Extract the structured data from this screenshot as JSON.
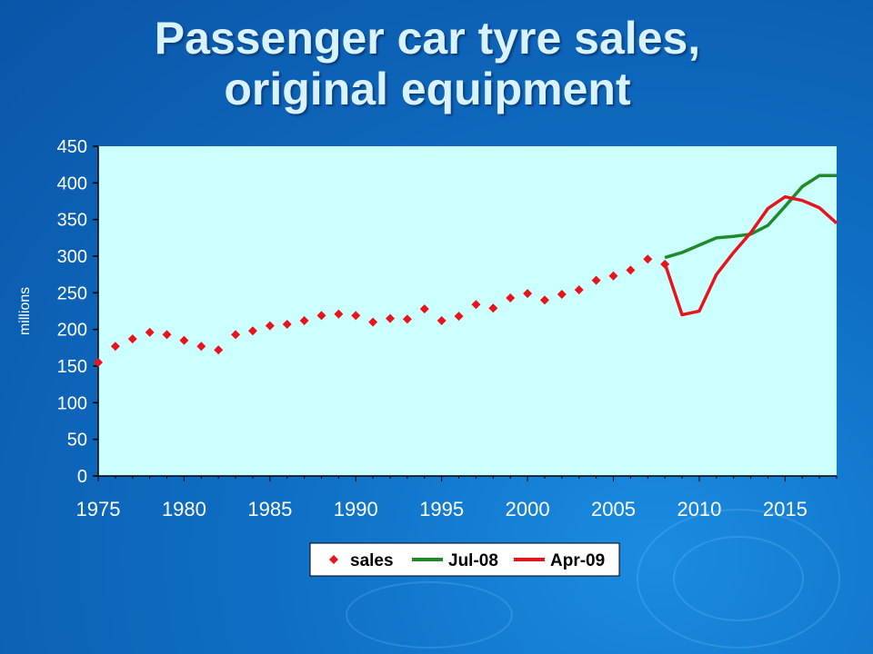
{
  "title": {
    "line1": "Passenger car tyre sales,",
    "line2": "original equipment"
  },
  "chart_data": {
    "type": "line",
    "ylabel": "millions",
    "xlim": [
      1975,
      2018
    ],
    "ylim": [
      0,
      450
    ],
    "x_ticks": [
      1975,
      1980,
      1985,
      1990,
      1995,
      2000,
      2005,
      2010,
      2015
    ],
    "y_ticks": [
      0,
      50,
      100,
      150,
      200,
      250,
      300,
      350,
      400,
      450
    ],
    "grid": false,
    "legend_position": "bottom",
    "colors": {
      "plot_background": "#ccffff",
      "sales": "#e8141c",
      "jul08": "#1e8a28",
      "apr09": "#e8141c"
    },
    "series": [
      {
        "name": "sales",
        "kind": "markers",
        "points": [
          [
            1975,
            155
          ],
          [
            1976,
            177
          ],
          [
            1977,
            187
          ],
          [
            1978,
            196
          ],
          [
            1979,
            193
          ],
          [
            1980,
            185
          ],
          [
            1981,
            177
          ],
          [
            1982,
            172
          ],
          [
            1983,
            193
          ],
          [
            1984,
            198
          ],
          [
            1985,
            205
          ],
          [
            1986,
            207
          ],
          [
            1987,
            212
          ],
          [
            1988,
            219
          ],
          [
            1989,
            221
          ],
          [
            1990,
            219
          ],
          [
            1991,
            210
          ],
          [
            1992,
            215
          ],
          [
            1993,
            214
          ],
          [
            1994,
            228
          ],
          [
            1995,
            212
          ],
          [
            1996,
            218
          ],
          [
            1997,
            234
          ],
          [
            1998,
            229
          ],
          [
            1999,
            243
          ],
          [
            2000,
            249
          ],
          [
            2001,
            240
          ],
          [
            2002,
            248
          ],
          [
            2003,
            254
          ],
          [
            2004,
            267
          ],
          [
            2005,
            273
          ],
          [
            2006,
            281
          ],
          [
            2007,
            296
          ],
          [
            2008,
            289
          ]
        ]
      },
      {
        "name": "Jul-08",
        "kind": "line",
        "points": [
          [
            2008,
            298
          ],
          [
            2009,
            305
          ],
          [
            2010,
            315
          ],
          [
            2011,
            325
          ],
          [
            2012,
            327
          ],
          [
            2013,
            330
          ],
          [
            2014,
            342
          ],
          [
            2015,
            368
          ],
          [
            2016,
            395
          ],
          [
            2017,
            410
          ],
          [
            2018,
            410
          ]
        ]
      },
      {
        "name": "Apr-09",
        "kind": "line",
        "points": [
          [
            2008,
            290
          ],
          [
            2009,
            220
          ],
          [
            2010,
            225
          ],
          [
            2011,
            275
          ],
          [
            2012,
            305
          ],
          [
            2013,
            332
          ],
          [
            2014,
            365
          ],
          [
            2015,
            381
          ],
          [
            2016,
            376
          ],
          [
            2017,
            366
          ],
          [
            2018,
            345
          ]
        ]
      }
    ]
  }
}
